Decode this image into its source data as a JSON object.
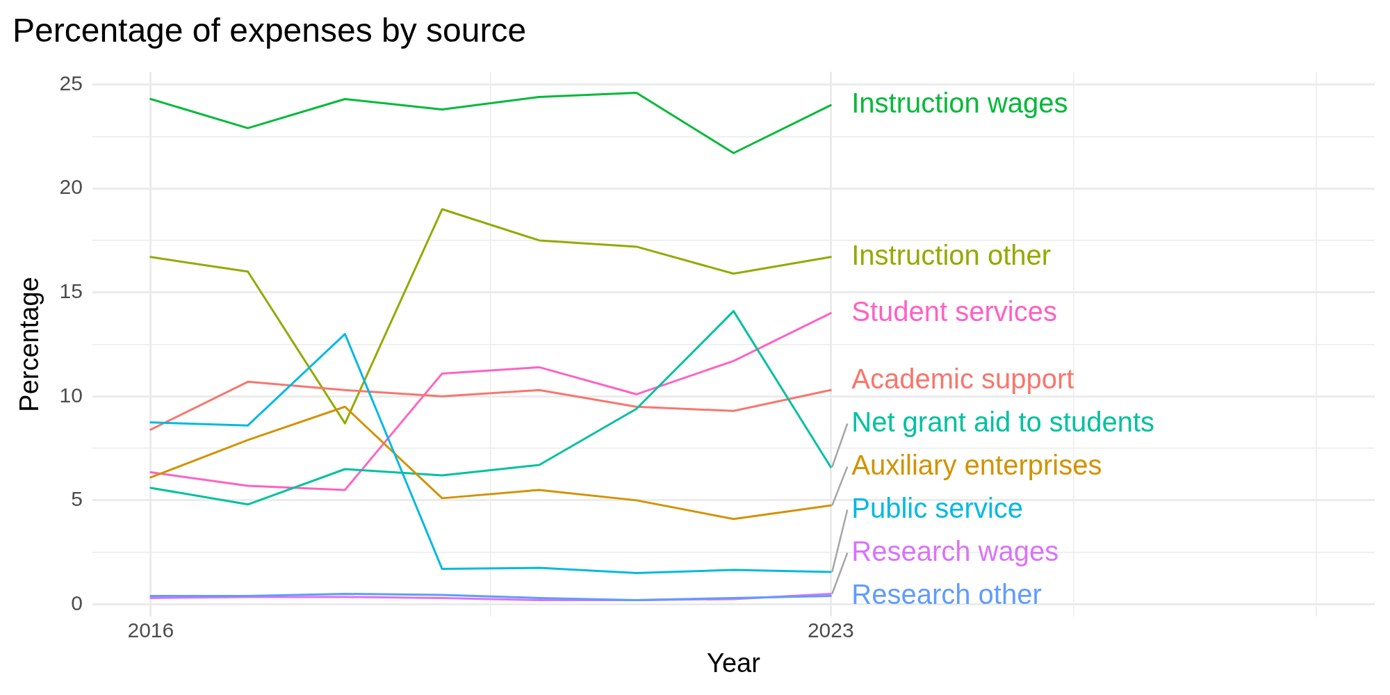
{
  "chart_data": {
    "type": "line",
    "title": "Percentage of expenses by source",
    "xlabel": "Year",
    "ylabel": "Percentage",
    "x": [
      2016,
      2017,
      2018,
      2019,
      2020,
      2021,
      2022,
      2023
    ],
    "xlim": [
      2015.4,
      2028.6
    ],
    "xticks": [
      2016,
      {
        "value": 2019.5,
        "label": null
      },
      2023,
      {
        "value": 2025.5,
        "label": null
      },
      {
        "value": 2028,
        "label": null
      }
    ],
    "ylim": [
      -0.6,
      25.6
    ],
    "yticks": [
      0,
      {
        "value": 2.5,
        "label": null
      },
      5,
      {
        "value": 7.5,
        "label": null
      },
      10,
      {
        "value": 12.5,
        "label": null
      },
      15,
      {
        "value": 17.5,
        "label": null
      },
      20,
      {
        "value": 22.5,
        "label": null
      },
      25
    ],
    "grid": true,
    "legend": false,
    "marker": "none",
    "line_style": "solid",
    "series": [
      {
        "name": "Instruction wages",
        "color": "#00ba38",
        "values": [
          24.3,
          22.9,
          24.3,
          23.8,
          24.4,
          24.6,
          21.7,
          24.0
        ]
      },
      {
        "name": "Instruction other",
        "color": "#93aa00",
        "values": [
          16.7,
          16.0,
          8.7,
          19.0,
          17.5,
          17.2,
          15.9,
          16.7
        ]
      },
      {
        "name": "Student services",
        "color": "#ff61c3",
        "values": [
          6.35,
          5.7,
          5.5,
          11.1,
          11.4,
          10.1,
          11.7,
          14.0
        ]
      },
      {
        "name": "Academic support",
        "color": "#f8766d",
        "values": [
          8.4,
          10.7,
          10.3,
          10.0,
          10.3,
          9.5,
          9.3,
          10.3
        ]
      },
      {
        "name": "Net grant aid to students",
        "color": "#00c19f",
        "values": [
          5.6,
          4.8,
          6.5,
          6.2,
          6.7,
          9.4,
          14.1,
          6.6
        ]
      },
      {
        "name": "Auxiliary enterprises",
        "color": "#d39200",
        "values": [
          6.1,
          7.9,
          9.5,
          5.1,
          5.5,
          5.0,
          4.1,
          4.75
        ]
      },
      {
        "name": "Public service",
        "color": "#00b9e3",
        "values": [
          8.75,
          8.6,
          13.0,
          1.7,
          1.75,
          1.5,
          1.65,
          1.55
        ]
      },
      {
        "name": "Research wages",
        "color": "#db72fb",
        "values": [
          0.3,
          0.35,
          0.35,
          0.3,
          0.2,
          0.2,
          0.25,
          0.5
        ]
      },
      {
        "name": "Research other",
        "color": "#619cff",
        "values": [
          0.4,
          0.4,
          0.5,
          0.45,
          0.3,
          0.2,
          0.3,
          0.4
        ]
      }
    ]
  }
}
